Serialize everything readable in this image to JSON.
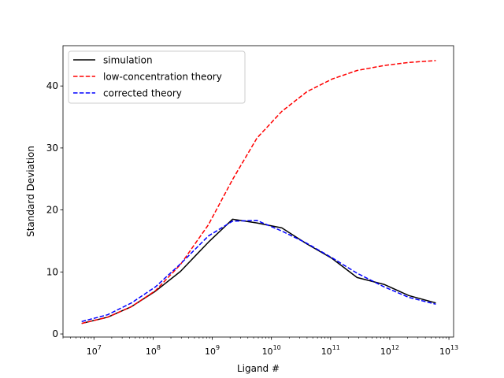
{
  "chart_data": {
    "type": "line",
    "xlabel": "Ligand #",
    "ylabel": "Standard Deviation",
    "xscale": "log",
    "xlim": [
      3000000,
      12000000000000.0
    ],
    "ylim": [
      -0.5,
      46.5
    ],
    "grid": false,
    "legend_position": "top-left",
    "x_ticks": [
      {
        "value": 10000000.0,
        "base": "10",
        "exp": "7"
      },
      {
        "value": 100000000.0,
        "base": "10",
        "exp": "8"
      },
      {
        "value": 1000000000.0,
        "base": "10",
        "exp": "9"
      },
      {
        "value": 10000000000.0,
        "base": "10",
        "exp": "10"
      },
      {
        "value": 100000000000.0,
        "base": "10",
        "exp": "11"
      },
      {
        "value": 1000000000000.0,
        "base": "10",
        "exp": "12"
      },
      {
        "value": 10000000000000.0,
        "base": "10",
        "exp": "13"
      }
    ],
    "y_ticks": [
      0,
      10,
      20,
      30,
      40
    ],
    "series": [
      {
        "name": "simulation",
        "color": "#000000",
        "style": "solid",
        "x": [
          6200000.0,
          17000000.0,
          43000000.0,
          110000000.0,
          290000000.0,
          860000000.0,
          2200000000.0,
          5700000000.0,
          15000000000.0,
          40000000000.0,
          105000000000.0,
          280000000000.0,
          800000000000.0,
          2100000000000.0,
          6000000000000.0
        ],
        "y": [
          1.7,
          2.7,
          4.4,
          6.9,
          10.1,
          14.8,
          18.5,
          17.9,
          17.1,
          14.5,
          12.2,
          9.1,
          8.0,
          6.2,
          5.0
        ]
      },
      {
        "name": "low-concentration theory",
        "color": "#ff0000",
        "style": "dashed",
        "x": [
          6200000.0,
          17000000.0,
          43000000.0,
          110000000.0,
          290000000.0,
          860000000.0,
          2200000000.0,
          5700000000.0,
          15000000000.0,
          40000000000.0,
          105000000000.0,
          280000000000.0,
          800000000000.0,
          2100000000000.0,
          6000000000000.0
        ],
        "y": [
          1.7,
          2.7,
          4.4,
          7.0,
          11.2,
          17.6,
          24.9,
          31.6,
          35.9,
          39.1,
          41.1,
          42.5,
          43.3,
          43.8,
          44.1
        ]
      },
      {
        "name": "corrected theory",
        "color": "#0000ff",
        "style": "dashed",
        "x": [
          6200000.0,
          17000000.0,
          43000000.0,
          110000000.0,
          290000000.0,
          860000000.0,
          2200000000.0,
          5700000000.0,
          15000000000.0,
          40000000000.0,
          105000000000.0,
          280000000000.0,
          800000000000.0,
          2100000000000.0,
          6000000000000.0
        ],
        "y": [
          2.0,
          3.1,
          5.0,
          7.6,
          11.3,
          15.8,
          18.2,
          18.3,
          16.6,
          14.6,
          12.3,
          9.8,
          7.6,
          5.9,
          4.8
        ]
      }
    ]
  }
}
